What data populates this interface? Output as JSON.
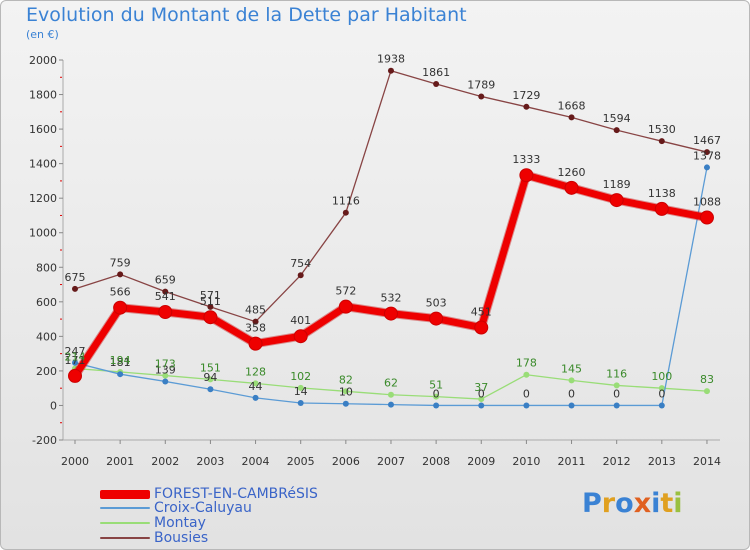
{
  "chart_data": {
    "type": "line",
    "title": "Evolution du Montant de la Dette par Habitant",
    "subtitle": "(en €)",
    "xlabel": "",
    "ylabel": "",
    "categories": [
      "2000",
      "2001",
      "2002",
      "2003",
      "2004",
      "2005",
      "2006",
      "2007",
      "2008",
      "2009",
      "2010",
      "2011",
      "2012",
      "2013",
      "2014"
    ],
    "ylim": [
      -200,
      2000
    ],
    "yticks": [
      -200,
      0,
      200,
      400,
      600,
      800,
      1000,
      1200,
      1400,
      1600,
      1800,
      2000
    ],
    "grid": false,
    "legend_position": "bottom-left",
    "series": [
      {
        "name": "FOREST-EN-CAMBRéSIS",
        "color": "#ee0000",
        "values": [
          171,
          566,
          541,
          511,
          358,
          401,
          572,
          532,
          503,
          451,
          1333,
          1260,
          1189,
          1138,
          1088
        ],
        "labels": [
          "171",
          "566",
          "541",
          "511",
          "358",
          "401",
          "572",
          "532",
          "503",
          "451",
          "1333",
          "1260",
          "1189",
          "1138",
          "1088"
        ]
      },
      {
        "name": "Croix-Caluyau",
        "color": "#5b9bd5",
        "values": [
          247,
          181,
          139,
          94,
          44,
          14,
          10,
          5,
          0,
          0,
          0,
          0,
          0,
          0,
          1378
        ],
        "labels": [
          "247",
          "181",
          "139",
          "94",
          "44",
          "14",
          "10",
          "",
          "0",
          "0",
          "0",
          "0",
          "0",
          "0",
          "1378"
        ]
      },
      {
        "name": "Montay",
        "color": "#99dd77",
        "values": [
          214,
          194,
          173,
          151,
          128,
          102,
          82,
          62,
          51,
          37,
          178,
          145,
          116,
          100,
          83
        ],
        "labels": [
          "214",
          "194",
          "173",
          "151",
          "128",
          "102",
          "82",
          "62",
          "51",
          "37",
          "178",
          "145",
          "116",
          "100",
          "83"
        ]
      },
      {
        "name": "Bousies",
        "color": "#884444",
        "values": [
          675,
          759,
          659,
          571,
          485,
          754,
          1116,
          1938,
          1861,
          1789,
          1729,
          1668,
          1594,
          1530,
          1467
        ],
        "labels": [
          "675",
          "759",
          "659",
          "571",
          "485",
          "754",
          "1116",
          "1938",
          "1861",
          "1789",
          "1729",
          "1668",
          "1594",
          "1530",
          "1467"
        ]
      }
    ]
  },
  "legend": [
    {
      "label": "FOREST-EN-CAMBRéSIS",
      "color": "#ee0000",
      "thick": true
    },
    {
      "label": "Croix-Caluyau",
      "color": "#5b9bd5",
      "thick": false
    },
    {
      "label": "Montay",
      "color": "#99dd77",
      "thick": false
    },
    {
      "label": "Bousies",
      "color": "#884444",
      "thick": false
    }
  ],
  "logo": {
    "text": "Proxiti"
  }
}
